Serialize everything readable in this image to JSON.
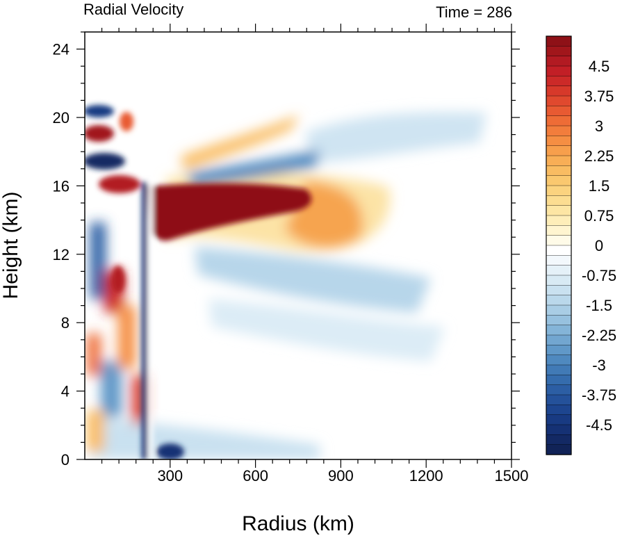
{
  "chart_data": {
    "type": "heatmap",
    "title": "Radial Velocity",
    "time_label": "Time = 286",
    "xlabel": "Radius (km)",
    "ylabel": "Height (km)",
    "xlim": [
      0,
      1500
    ],
    "ylim": [
      0,
      25
    ],
    "x_ticks": [
      300,
      600,
      900,
      1200,
      1500
    ],
    "y_ticks": [
      0,
      4,
      8,
      12,
      16,
      20,
      24
    ],
    "x_tick_labels": [
      "300",
      "600",
      "900",
      "1200",
      "1500"
    ],
    "y_tick_labels": [
      "0",
      "4",
      "8",
      "12",
      "16",
      "20",
      "24"
    ],
    "colorbar": {
      "min": -5.25,
      "max": 5.25,
      "step": 0.25,
      "labeled_values": [
        4.5,
        3.75,
        3,
        2.25,
        1.5,
        0.75,
        0,
        -0.75,
        -1.5,
        -2.25,
        -3,
        -3.75,
        -4.5
      ],
      "labels": [
        "4.5",
        "3.75",
        "3",
        "2.25",
        "1.5",
        "0.75",
        "0",
        "-0.75",
        "-1.5",
        "-2.25",
        "-3",
        "-3.75",
        "-4.5"
      ],
      "colors_top_to_bottom": [
        "#8e1117",
        "#a1161b",
        "#b21a22",
        "#c21f26",
        "#cc2a28",
        "#d7392a",
        "#e0492e",
        "#e85a32",
        "#ee6c36",
        "#f27d3c",
        "#f58e43",
        "#f79f4c",
        "#f8ae56",
        "#f9bc62",
        "#fac86f",
        "#fbd37f",
        "#fcdd91",
        "#fde6a4",
        "#feeeb9",
        "#fff5d0",
        "#fffbe8",
        "#ffffff",
        "#f3f8fc",
        "#e5f1f8",
        "#d8eaf4",
        "#c9e1f0",
        "#bad8eb",
        "#a9cde5",
        "#97c1df",
        "#84b4d8",
        "#72a6d0",
        "#6098c8",
        "#4f89bf",
        "#417ab6",
        "#356cad",
        "#2c5ea4",
        "#24519a",
        "#1d458f",
        "#183a82",
        "#153174",
        "#132964",
        "#112357"
      ]
    },
    "features": [
      {
        "type": "outflow_max",
        "value": 5.25,
        "radius_range": [
          240,
          760
        ],
        "height": 14.5
      },
      {
        "type": "inflow_band",
        "value": -1.5,
        "radius_range": [
          300,
          900
        ],
        "height": 11
      },
      {
        "type": "inflow_layer",
        "value": -1.0,
        "radius_range": [
          450,
          1450
        ],
        "height": 20
      },
      {
        "type": "inflow_boundary_layer",
        "value": -5.0,
        "radius_range": [
          250,
          360
        ],
        "height": 0.5
      },
      {
        "type": "updraft_wall",
        "radius": 230,
        "height_range": [
          0,
          17
        ]
      }
    ]
  }
}
